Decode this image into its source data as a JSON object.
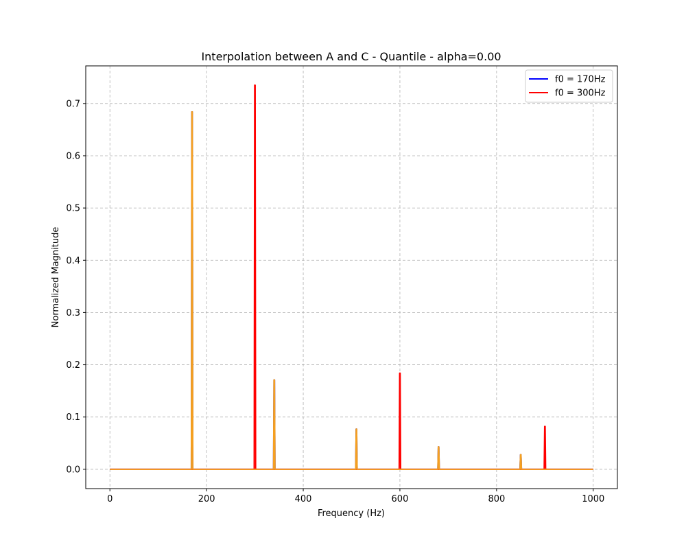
{
  "chart_data": {
    "type": "line",
    "title": "Interpolation between A and C - Quantile - alpha=0.00",
    "xlabel": "Frequency (Hz)",
    "ylabel": "Normalized Magnitude",
    "xlim": [
      -50,
      1050
    ],
    "ylim": [
      -0.037,
      0.772
    ],
    "x_ticks": [
      0,
      200,
      400,
      600,
      800,
      1000
    ],
    "x_tick_labels": [
      "0",
      "200",
      "400",
      "600",
      "800",
      "1000"
    ],
    "y_ticks": [
      0.0,
      0.1,
      0.2,
      0.3,
      0.4,
      0.5,
      0.6,
      0.7
    ],
    "y_tick_labels": [
      "0.0",
      "0.1",
      "0.2",
      "0.3",
      "0.4",
      "0.5",
      "0.6",
      "0.7"
    ],
    "grid": true,
    "legend_position": "top-right",
    "series": [
      {
        "name": "f0 = 170Hz",
        "color": "#0000ff",
        "in_legend": true,
        "peaks": [
          [
            170,
            0.684
          ],
          [
            340,
            0.171
          ],
          [
            510,
            0.077
          ],
          [
            680,
            0.043
          ],
          [
            850,
            0.028
          ]
        ]
      },
      {
        "name": "f0 = 300Hz",
        "color": "#ff0000",
        "in_legend": true,
        "peaks": [
          [
            300,
            0.735
          ],
          [
            600,
            0.184
          ],
          [
            900,
            0.082
          ]
        ]
      },
      {
        "name": "",
        "color": "#f5a020",
        "in_legend": false,
        "peaks": [
          [
            170,
            0.684
          ],
          [
            340,
            0.171
          ],
          [
            510,
            0.077
          ],
          [
            680,
            0.043
          ],
          [
            850,
            0.028
          ]
        ]
      }
    ],
    "x_range": [
      0,
      1000
    ]
  }
}
